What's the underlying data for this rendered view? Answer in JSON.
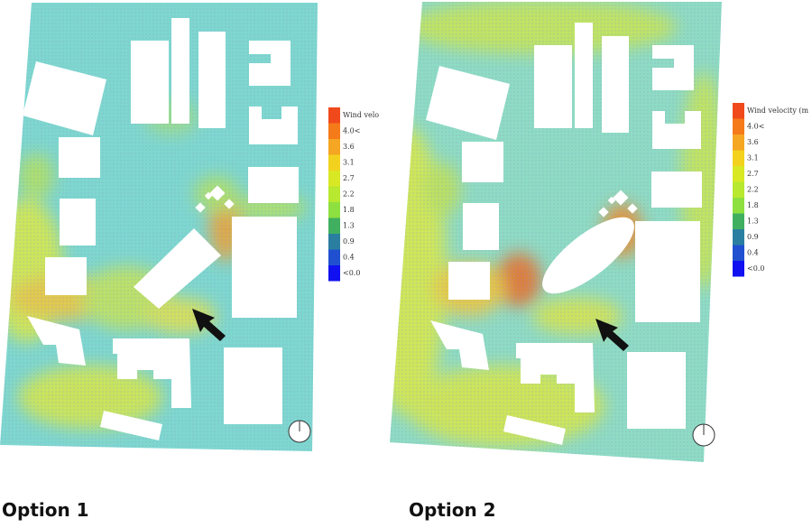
{
  "panels": [
    {
      "caption": "Option 1",
      "legend": {
        "title": "Wind velo",
        "labels": [
          "4.0<",
          "3.6",
          "3.1",
          "2.7",
          "2.2",
          "1.8",
          "1.3",
          "0.9",
          "0.4",
          "<0.0"
        ]
      }
    },
    {
      "caption": "Option 2",
      "legend": {
        "title": "Wind velocity (m",
        "labels": [
          "4.0<",
          "3.6",
          "3.1",
          "2.7",
          "2.2",
          "1.8",
          "1.3",
          "0.9",
          "0.4",
          "<0.0"
        ]
      }
    }
  ]
}
